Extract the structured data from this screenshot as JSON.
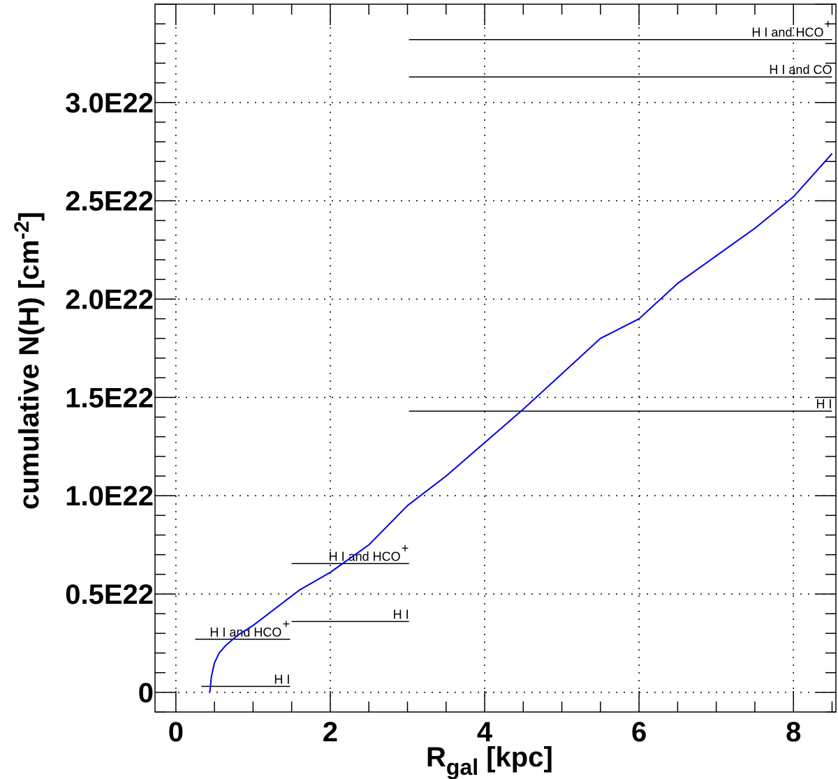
{
  "chart_data": {
    "type": "line",
    "title": "",
    "xlabel": {
      "main": "R",
      "sub": "gal",
      "unit": " [kpc]"
    },
    "ylabel": {
      "main": "cumulative N(H) [cm",
      "sup": "-2",
      "close": "]"
    },
    "xlim": [
      -0.27,
      8.55
    ],
    "ylim": [
      -1e+21,
      3.5e+22
    ],
    "grid": true,
    "x_ticks": [
      {
        "value": 0,
        "label": "0"
      },
      {
        "value": 2,
        "label": "2"
      },
      {
        "value": 4,
        "label": "4"
      },
      {
        "value": 6,
        "label": "6"
      },
      {
        "value": 8,
        "label": "8"
      }
    ],
    "y_ticks": [
      {
        "value": 0,
        "label": "0"
      },
      {
        "value": 5e+21,
        "label": "0.5E22"
      },
      {
        "value": 1e+22,
        "label": "1.0E22"
      },
      {
        "value": 1.5e+22,
        "label": "1.5E22"
      },
      {
        "value": 2e+22,
        "label": "2.0E22"
      },
      {
        "value": 2.5e+22,
        "label": "2.5E22"
      },
      {
        "value": 3e+22,
        "label": "3.0E22"
      }
    ],
    "series": [
      {
        "color": "#0000e6",
        "x": [
          0.44,
          0.46,
          0.5,
          0.56,
          0.65,
          0.8,
          1.0,
          1.3,
          1.6,
          2.0,
          2.5,
          3.0,
          3.5,
          4.0,
          4.5,
          5.0,
          5.5,
          6.0,
          6.5,
          7.0,
          7.5,
          8.0,
          8.5
        ],
        "y": [
          0,
          8e+20,
          1.5e+21,
          2e+21,
          2.4e+21,
          2.9e+21,
          3.4e+21,
          4.3e+21,
          5.2e+21,
          6.1e+21,
          7.5e+21,
          9.5e+21,
          1.1e+22,
          1.27e+22,
          1.44e+22,
          1.62e+22,
          1.8e+22,
          1.9e+22,
          2.08e+22,
          2.22e+22,
          2.36e+22,
          2.52e+22,
          2.74e+22
        ]
      }
    ],
    "annotations": [
      {
        "text": "H I",
        "sup": "",
        "x1": 0.33,
        "x2": 1.48,
        "y": 3e+20
      },
      {
        "text": "H I and HCO",
        "sup": "+",
        "x1": 0.25,
        "x2": 1.48,
        "y": 2.7e+21
      },
      {
        "text": "H I",
        "sup": "",
        "x1": 1.5,
        "x2": 3.02,
        "y": 3.6e+21
      },
      {
        "text": "H I and HCO",
        "sup": "+",
        "x1": 1.5,
        "x2": 3.02,
        "y": 6.55e+21
      },
      {
        "text": "H I",
        "sup": "",
        "x1": 3.02,
        "x2": 8.5,
        "y": 1.43e+22
      },
      {
        "text": "H I and CO",
        "sup": "",
        "x1": 3.02,
        "x2": 8.5,
        "y": 3.13e+22
      },
      {
        "text": "H I and HCO",
        "sup": "+",
        "x1": 3.02,
        "x2": 8.5,
        "y": 3.32e+22
      }
    ],
    "colors": {
      "axis": "#000000",
      "grid": "#000000",
      "annotation_line": "#000000"
    }
  }
}
